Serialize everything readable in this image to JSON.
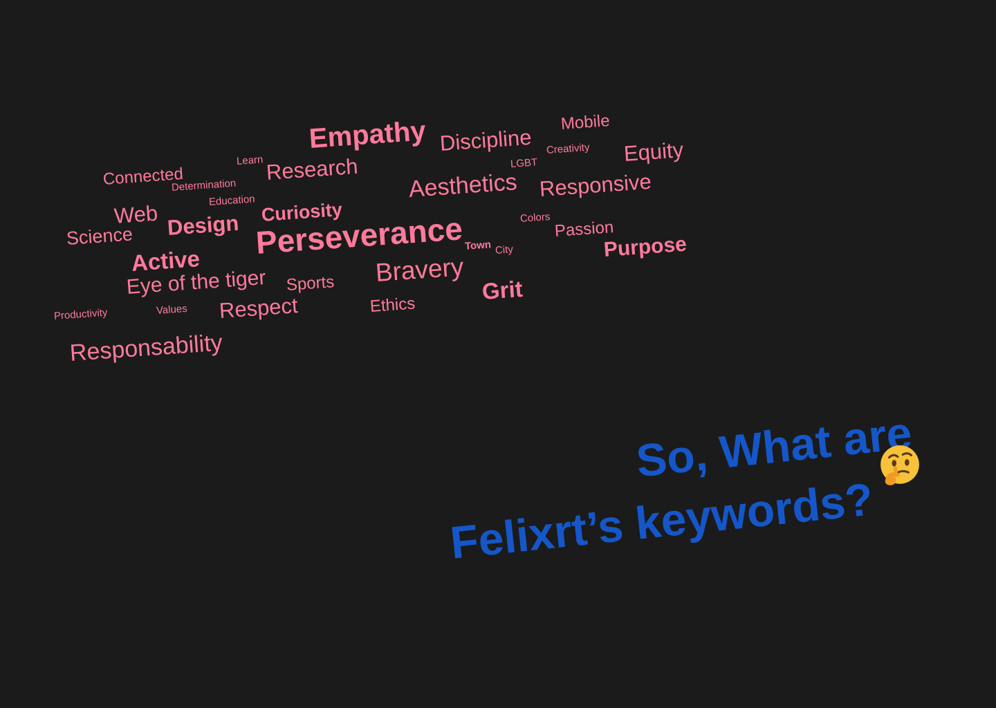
{
  "colors": {
    "background": "#1b1b1b",
    "word_cloud": "#ff7a9c",
    "heading": "#1557c9",
    "emoji_face": "#f7c23a",
    "emoji_hand": "#f29b22"
  },
  "word_cloud": [
    {
      "text": "Empathy",
      "weight": "bold"
    },
    {
      "text": "Discipline",
      "weight": "normal"
    },
    {
      "text": "Mobile",
      "weight": "normal"
    },
    {
      "text": "Creativity",
      "weight": "normal"
    },
    {
      "text": "Equity",
      "weight": "normal"
    },
    {
      "text": "Connected",
      "weight": "normal"
    },
    {
      "text": "Learn",
      "weight": "normal"
    },
    {
      "text": "Research",
      "weight": "normal"
    },
    {
      "text": "LGBT",
      "weight": "normal"
    },
    {
      "text": "Determination",
      "weight": "normal"
    },
    {
      "text": "Aesthetics",
      "weight": "normal"
    },
    {
      "text": "Responsive",
      "weight": "normal"
    },
    {
      "text": "Education",
      "weight": "normal"
    },
    {
      "text": "Web",
      "weight": "normal"
    },
    {
      "text": "Curiosity",
      "weight": "bold"
    },
    {
      "text": "Design",
      "weight": "bold"
    },
    {
      "text": "Colors",
      "weight": "normal"
    },
    {
      "text": "Science",
      "weight": "normal"
    },
    {
      "text": "Perseverance",
      "weight": "bold"
    },
    {
      "text": "Passion",
      "weight": "normal"
    },
    {
      "text": "Town",
      "weight": "bold"
    },
    {
      "text": "City",
      "weight": "normal"
    },
    {
      "text": "Purpose",
      "weight": "bold"
    },
    {
      "text": "Active",
      "weight": "bold"
    },
    {
      "text": "Bravery",
      "weight": "normal"
    },
    {
      "text": "Eye of the tiger",
      "weight": "normal"
    },
    {
      "text": "Sports",
      "weight": "normal"
    },
    {
      "text": "Grit",
      "weight": "bold"
    },
    {
      "text": "Productivity",
      "weight": "normal"
    },
    {
      "text": "Values",
      "weight": "normal"
    },
    {
      "text": "Respect",
      "weight": "normal"
    },
    {
      "text": "Ethics",
      "weight": "normal"
    },
    {
      "text": "Responsability",
      "weight": "normal"
    }
  ],
  "heading": {
    "line1": "So, What are",
    "line2": "Felixrt’s keywords?",
    "emoji": "thinking-face-icon"
  }
}
